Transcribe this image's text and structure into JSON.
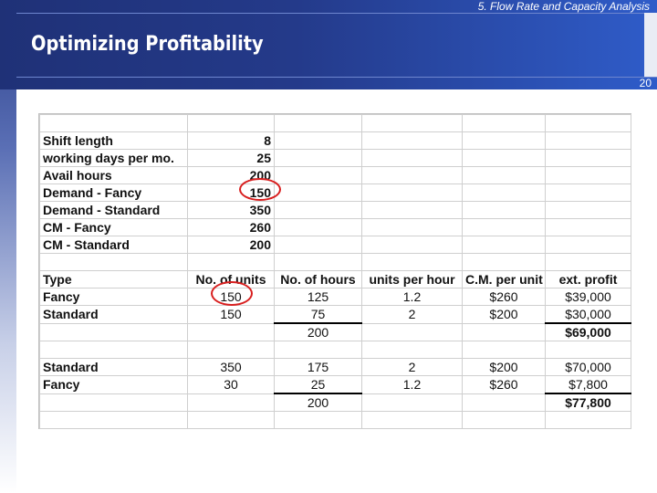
{
  "header": {
    "section_label": "5. Flow Rate and Capacity Analysis",
    "title": "Optimizing Profitability",
    "page_number": "20"
  },
  "params": [
    {
      "label": "Shift length",
      "value": "8"
    },
    {
      "label": "working days per mo.",
      "value": "25"
    },
    {
      "label": "Avail hours",
      "value": "200"
    },
    {
      "label": "Demand - Fancy",
      "value": "150"
    },
    {
      "label": "Demand - Standard",
      "value": "350"
    },
    {
      "label": "CM - Fancy",
      "value": "260"
    },
    {
      "label": "CM - Standard",
      "value": "200"
    }
  ],
  "columns": [
    "Type",
    "No. of units",
    "No. of hours",
    "units per hour",
    "C.M. per unit",
    "ext. profit"
  ],
  "plan1": {
    "rows": [
      {
        "type": "Fancy",
        "units": "150",
        "hours": "125",
        "uph": "1.2",
        "cm": "$260",
        "profit": "$39,000"
      },
      {
        "type": "Standard",
        "units": "150",
        "hours": "75",
        "uph": "2",
        "cm": "$200",
        "profit": "$30,000"
      }
    ],
    "total_hours": "200",
    "total_profit": "$69,000"
  },
  "plan2": {
    "rows": [
      {
        "type": "Standard",
        "units": "350",
        "hours": "175",
        "uph": "2",
        "cm": "$200",
        "profit": "$70,000"
      },
      {
        "type": "Fancy",
        "units": "30",
        "hours": "25",
        "uph": "1.2",
        "cm": "$260",
        "profit": "$7,800"
      }
    ],
    "total_hours": "200",
    "total_profit": "$77,800"
  },
  "colors": {
    "header_dark": "#1f3177",
    "header_light": "#2f5cc9",
    "circle": "#d81e1e"
  }
}
